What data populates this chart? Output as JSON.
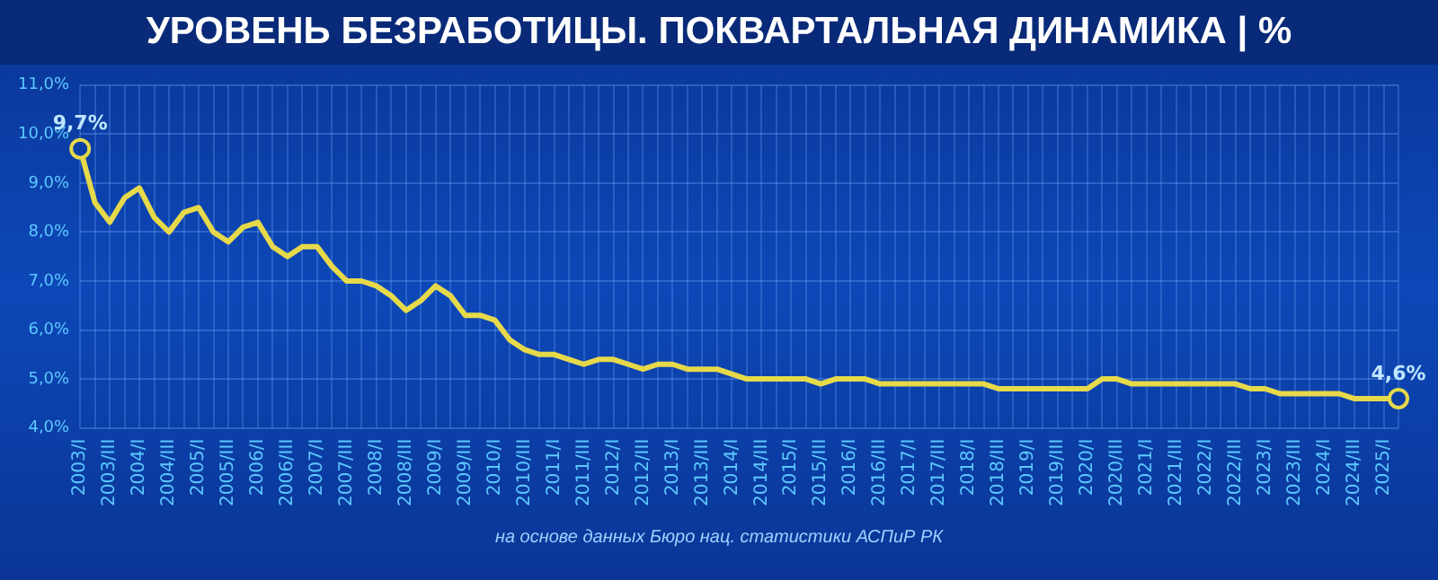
{
  "chart_data": {
    "type": "line",
    "title": "УРОВЕНЬ БЕЗРАБОТИЦЫ. ПОКВАРТАЛЬНАЯ ДИНАМИКА | %",
    "annotations": [
      "на основе данных Бюро нац. статистики АСПиР РК"
    ],
    "categories": [
      "2003/I",
      null,
      "2003/III",
      null,
      "2004/I",
      null,
      "2004/III",
      null,
      "2005/I",
      null,
      "2005/III",
      null,
      "2006/I",
      null,
      "2006/III",
      null,
      "2007/I",
      null,
      "2007/III",
      null,
      "2008/I",
      null,
      "2008/III",
      null,
      "2009/I",
      null,
      "2009/III",
      null,
      "2010/I",
      null,
      "2010/III",
      null,
      "2011/I",
      null,
      "2011/III",
      null,
      "2012/I",
      null,
      "2012/III",
      null,
      "2013/I",
      null,
      "2013/III",
      null,
      "2014/I",
      null,
      "2014/III",
      null,
      "2015/I",
      null,
      "2015/III",
      null,
      "2016/I",
      null,
      "2016/III",
      null,
      "2017/I",
      null,
      "2017/III",
      null,
      "2018/I",
      null,
      "2018/III",
      null,
      "2019/I",
      null,
      "2019/III",
      null,
      "2020/I",
      null,
      "2020/III",
      null,
      "2021/I",
      null,
      "2021/III",
      null,
      "2022/I",
      null,
      "2022/III",
      null,
      "2023/I",
      null,
      "2023/III",
      null,
      "2024/I",
      null,
      "2024/III",
      null,
      "2025/I",
      null
    ],
    "series": [
      {
        "color": "#e6d94a",
        "values": [
          9.7,
          8.6,
          8.2,
          8.7,
          8.9,
          8.3,
          8.0,
          8.4,
          8.5,
          8.0,
          7.8,
          8.1,
          8.2,
          7.7,
          7.5,
          7.7,
          7.7,
          7.3,
          7.0,
          7.0,
          6.9,
          6.7,
          6.4,
          6.6,
          6.9,
          6.7,
          6.3,
          6.3,
          6.2,
          5.8,
          5.6,
          5.5,
          5.5,
          5.4,
          5.3,
          5.4,
          5.4,
          5.3,
          5.2,
          5.3,
          5.3,
          5.2,
          5.2,
          5.2,
          5.1,
          5.0,
          5.0,
          5.0,
          5.0,
          5.0,
          4.9,
          5.0,
          5.0,
          5.0,
          4.9,
          4.9,
          4.9,
          4.9,
          4.9,
          4.9,
          4.9,
          4.9,
          4.8,
          4.8,
          4.8,
          4.8,
          4.8,
          4.8,
          4.8,
          5.0,
          5.0,
          4.9,
          4.9,
          4.9,
          4.9,
          4.9,
          4.9,
          4.9,
          4.9,
          4.8,
          4.8,
          4.7,
          4.7,
          4.7,
          4.7,
          4.7,
          4.6,
          4.6,
          4.6,
          4.6
        ],
        "value_labels": [
          "9,7%",
          null,
          null,
          null,
          null,
          null,
          null,
          null,
          null,
          null,
          null,
          null,
          null,
          null,
          null,
          null,
          null,
          null,
          null,
          null,
          null,
          null,
          null,
          null,
          null,
          null,
          null,
          null,
          null,
          null,
          null,
          null,
          null,
          null,
          null,
          null,
          null,
          null,
          null,
          null,
          null,
          null,
          null,
          null,
          null,
          null,
          null,
          null,
          null,
          null,
          null,
          null,
          null,
          null,
          null,
          null,
          null,
          null,
          null,
          null,
          null,
          null,
          null,
          null,
          null,
          null,
          null,
          null,
          null,
          null,
          null,
          null,
          null,
          null,
          null,
          null,
          null,
          null,
          null,
          null,
          null,
          null,
          null,
          null,
          null,
          null,
          null,
          null,
          null,
          "4,6%"
        ]
      }
    ],
    "ylim": [
      4,
      11
    ],
    "yticks": [
      {
        "value": 4,
        "label": "4,0%"
      },
      {
        "value": 5,
        "label": "5,0%"
      },
      {
        "value": 6,
        "label": "6,0%"
      },
      {
        "value": 7,
        "label": "7,0%"
      },
      {
        "value": 8,
        "label": "8,0%"
      },
      {
        "value": 9,
        "label": "9,0%"
      },
      {
        "value": 10,
        "label": "10,0%"
      },
      {
        "value": 11,
        "label": "11,0%"
      }
    ],
    "grid": true,
    "legend": false
  }
}
